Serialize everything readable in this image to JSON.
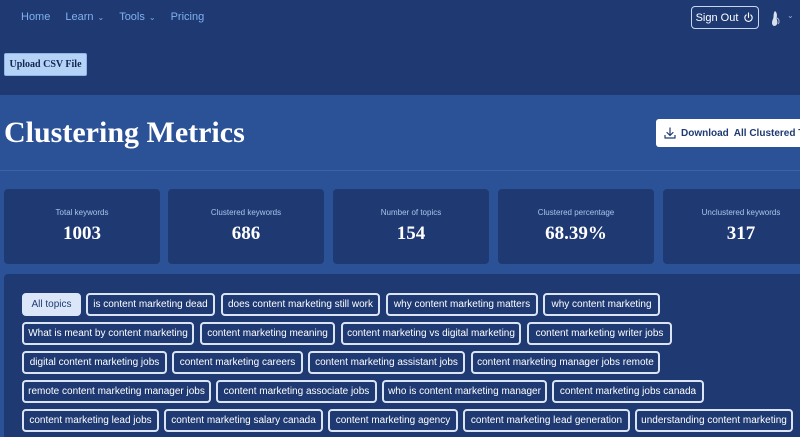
{
  "nav": {
    "items": [
      {
        "label": "Home",
        "dropdown": false
      },
      {
        "label": "Learn",
        "dropdown": true
      },
      {
        "label": "Tools",
        "dropdown": true
      },
      {
        "label": "Pricing",
        "dropdown": false
      }
    ],
    "sign_out": "Sign Out"
  },
  "upload": {
    "label": "Upload CSV File"
  },
  "page": {
    "title": "Clustering Metrics",
    "download_prefix": "Download",
    "download_label": "All Clustered Top"
  },
  "metrics": [
    {
      "label": "Total keywords",
      "value": "1003"
    },
    {
      "label": "Clustered keywords",
      "value": "686"
    },
    {
      "label": "Number of topics",
      "value": "154"
    },
    {
      "label": "Clustered percentage",
      "value": "68.39%"
    },
    {
      "label": "Unclustered keywords",
      "value": "317"
    }
  ],
  "topics": [
    "All topics",
    "is content marketing dead",
    "does content marketing still work",
    "why content marketing matters",
    "why content marketing",
    "What is meant by content marketing",
    "content marketing meaning",
    "content marketing vs digital marketing",
    "content marketing writer jobs",
    "digital content marketing jobs",
    "content marketing careers",
    "content marketing assistant jobs",
    "content marketing manager jobs remote",
    "remote content marketing manager jobs",
    "content marketing associate jobs",
    "who is content marketing manager",
    "content marketing jobs canada",
    "content marketing lead jobs",
    "content marketing salary canada",
    "content marketing agency",
    "content marketing lead generation",
    "understanding content marketing"
  ],
  "colors": {
    "background": "#1f3a73",
    "panel": "#2b5297",
    "link": "#7fb0f0",
    "upload_button": "#b5d2f7"
  }
}
